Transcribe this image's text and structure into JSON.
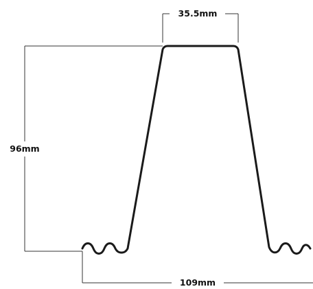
{
  "dimensions": {
    "top_width": "35.5mm",
    "height": "96mm",
    "pitch": "109mm"
  },
  "colors": {
    "profile_stroke": "#1a1a1a",
    "dimension_stroke": "#333333",
    "label_text": "#111111",
    "background": "#ffffff"
  }
}
